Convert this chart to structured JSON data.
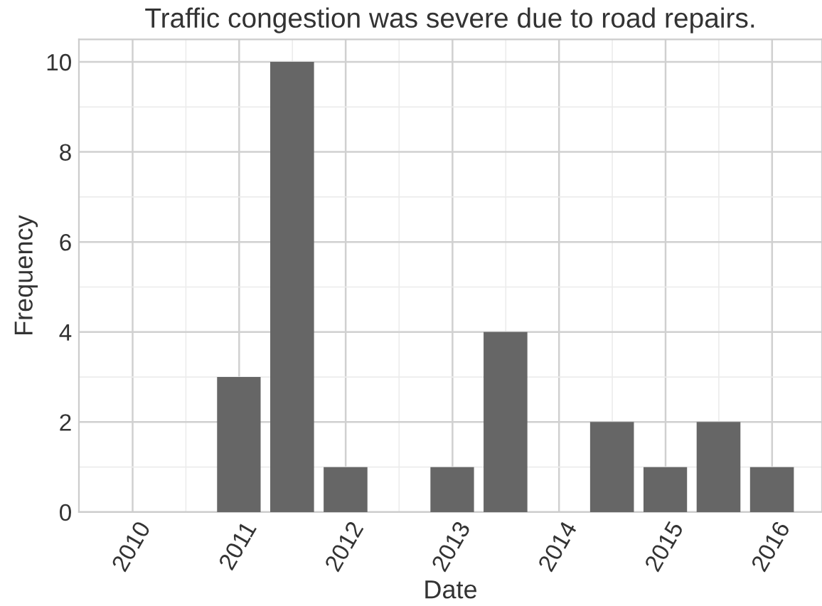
{
  "chart_data": {
    "type": "histogram",
    "title": "Traffic congestion was severe due to road repairs.",
    "xlabel": "Date",
    "ylabel": "Frequency",
    "bins": [
      "2010-10-01",
      "2011-04-01",
      "2011-10-01",
      "2012-04-01",
      "2012-10-01",
      "2013-04-01",
      "2013-10-01",
      "2014-04-01",
      "2014-10-01",
      "2015-04-01",
      "2015-10-01",
      "2016-04-01"
    ],
    "values": [
      3,
      10,
      1,
      0,
      1,
      4,
      0,
      2,
      1,
      2,
      1
    ],
    "color": "#666666",
    "xlim": [
      "2009-07-01",
      "2016-06-20"
    ],
    "xticks": [
      "2010",
      "2011",
      "2012",
      "2013",
      "2014",
      "2015",
      "2016"
    ],
    "ylim": [
      0,
      10.5
    ],
    "yticks": [
      0,
      2,
      4,
      6,
      8,
      10
    ],
    "grid": true
  }
}
